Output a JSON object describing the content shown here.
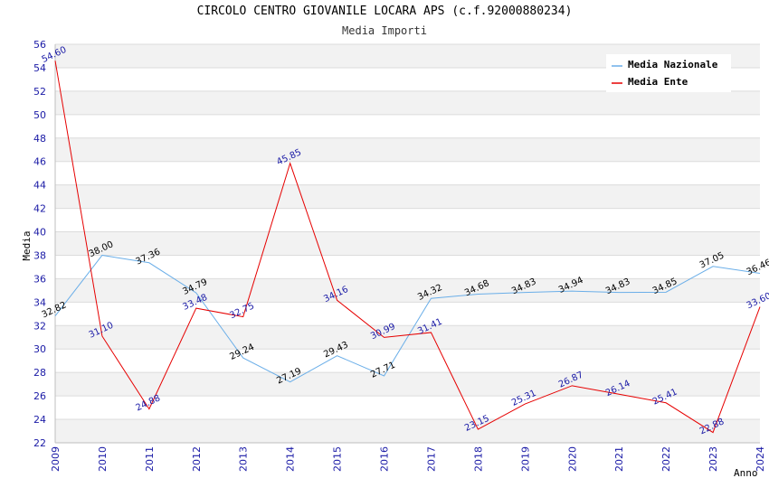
{
  "chart_data": {
    "type": "line",
    "title": "CIRCOLO CENTRO GIOVANILE LOCARA APS (c.f.92000880234)",
    "subtitle": "Media Importi",
    "xlabel": "Anno",
    "ylabel": "Media",
    "ylim": [
      22,
      56
    ],
    "ytick_step": 2,
    "legend_position": "top-right",
    "categories": [
      "2009",
      "2010",
      "2011",
      "2012",
      "2013",
      "2014",
      "2015",
      "2016",
      "2017",
      "2018",
      "2019",
      "2020",
      "2021",
      "2022",
      "2023",
      "2024"
    ],
    "series": [
      {
        "name": "Media Nazionale",
        "color": "#6aaee8",
        "values": [
          32.82,
          38.0,
          37.36,
          34.79,
          29.24,
          27.19,
          29.43,
          27.71,
          34.32,
          34.68,
          34.83,
          34.94,
          34.83,
          34.85,
          37.05,
          36.46
        ],
        "labels": [
          "32.82",
          "38.00",
          "37.36",
          "34.79",
          "29.24",
          "27.19",
          "29.43",
          "27.71",
          "34.32",
          "34.68",
          "34.83",
          "34.94",
          "34.83",
          "34.85",
          "37.05",
          "36.46"
        ]
      },
      {
        "name": "Media Ente",
        "color": "#e60000",
        "values": [
          54.6,
          31.1,
          24.88,
          33.48,
          32.75,
          45.85,
          34.16,
          30.99,
          31.41,
          23.15,
          25.31,
          26.87,
          26.14,
          25.41,
          22.88,
          33.6
        ],
        "labels": [
          "54.60",
          "31.10",
          "24.88",
          "33.48",
          "32.75",
          "45.85",
          "34.16",
          "30.99",
          "31.41",
          "23.15",
          "25.31",
          "26.87",
          "26.14",
          "25.41",
          "22.88",
          "33.60"
        ]
      }
    ]
  }
}
